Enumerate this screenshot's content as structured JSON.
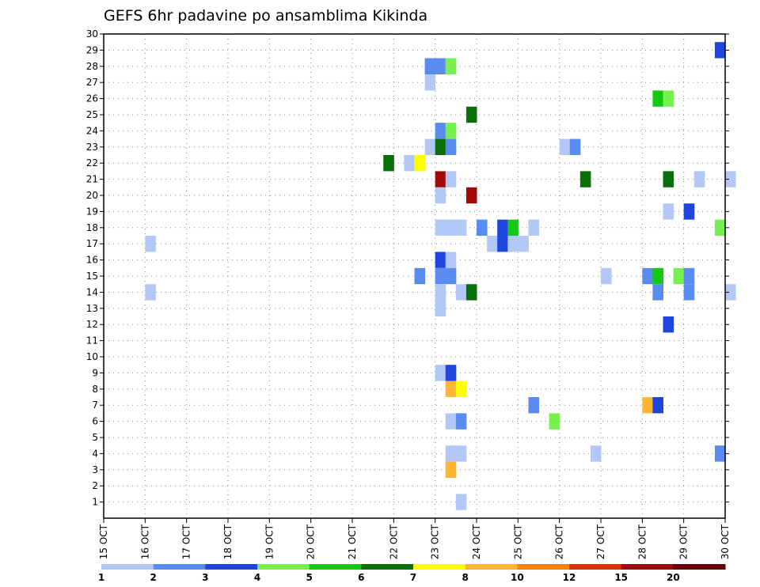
{
  "chart_data": {
    "type": "heatmap",
    "title": "GEFS 6hr padavine po ansamblima Kikinda",
    "x_ticks": [
      "15 OCT",
      "16 OCT",
      "17 OCT",
      "18 OCT",
      "19 OCT",
      "20 OCT",
      "21 OCT",
      "22 OCT",
      "23 OCT",
      "24 OCT",
      "25 OCT",
      "26 OCT",
      "27 OCT",
      "28 OCT",
      "29 OCT",
      "30 OCT"
    ],
    "y_range": [
      0,
      30
    ],
    "y_ticks": [
      1,
      2,
      3,
      4,
      5,
      6,
      7,
      8,
      9,
      10,
      11,
      12,
      13,
      14,
      15,
      16,
      17,
      18,
      19,
      20,
      21,
      22,
      23,
      24,
      25,
      26,
      27,
      28,
      29,
      30
    ],
    "grid": true,
    "colorbar": {
      "levels": [
        "1",
        "2",
        "3",
        "4",
        "5",
        "6",
        "7",
        "8",
        "10",
        "12",
        "15",
        "20"
      ],
      "colors": [
        "#b4c8f8",
        "#5a8cf0",
        "#1e46dc",
        "#78f050",
        "#14c814",
        "#0a6e0a",
        "#ffff00",
        "#ffb432",
        "#ff8200",
        "#dc320a",
        "#a00a0a",
        "#640000"
      ]
    },
    "cells": [
      {
        "day": "22.75",
        "member": 28,
        "class": 2
      },
      {
        "day": "23.0",
        "member": 28,
        "class": 2
      },
      {
        "day": "23.25",
        "member": 28,
        "class": 1
      },
      {
        "day": "23.25",
        "member": 28,
        "class": 4
      },
      {
        "day": "22.75",
        "member": 27,
        "class": 1
      },
      {
        "day": "28.25",
        "member": 26,
        "class": 5
      },
      {
        "day": "28.5",
        "member": 26,
        "class": 4
      },
      {
        "day": "29.75",
        "member": 29,
        "class": 3
      },
      {
        "day": "23.75",
        "member": 25,
        "class": 6
      },
      {
        "day": "23.0",
        "member": 24,
        "class": 2
      },
      {
        "day": "23.25",
        "member": 24,
        "class": 4
      },
      {
        "day": "22.75",
        "member": 23,
        "class": 1
      },
      {
        "day": "23.0",
        "member": 23,
        "class": 1
      },
      {
        "day": "23.0",
        "member": 23,
        "class": 6
      },
      {
        "day": "23.25",
        "member": 23,
        "class": 2
      },
      {
        "day": "26.0",
        "member": 23,
        "class": 1
      },
      {
        "day": "26.25",
        "member": 23,
        "class": 2
      },
      {
        "day": "21.75",
        "member": 22,
        "class": 6
      },
      {
        "day": "22.25",
        "member": 22,
        "class": 1
      },
      {
        "day": "22.5",
        "member": 22,
        "class": 7
      },
      {
        "day": "23.0",
        "member": 21,
        "class": 11
      },
      {
        "day": "23.25",
        "member": 21,
        "class": 1
      },
      {
        "day": "26.5",
        "member": 21,
        "class": 6
      },
      {
        "day": "28.5",
        "member": 21,
        "class": 6
      },
      {
        "day": "29.25",
        "member": 21,
        "class": 1
      },
      {
        "day": "30.0",
        "member": 21,
        "class": 1
      },
      {
        "day": "23.0",
        "member": 20,
        "class": 1
      },
      {
        "day": "23.75",
        "member": 20,
        "class": 11
      },
      {
        "day": "28.5",
        "member": 19,
        "class": 1
      },
      {
        "day": "29.0",
        "member": 19,
        "class": 3
      },
      {
        "day": "23.0",
        "member": 18,
        "class": 1
      },
      {
        "day": "23.25",
        "member": 18,
        "class": 1
      },
      {
        "day": "23.5",
        "member": 18,
        "class": 1
      },
      {
        "day": "24.0",
        "member": 18,
        "class": 2
      },
      {
        "day": "24.5",
        "member": 18,
        "class": 3
      },
      {
        "day": "24.75",
        "member": 18,
        "class": 5
      },
      {
        "day": "25.25",
        "member": 18,
        "class": 1
      },
      {
        "day": "29.75",
        "member": 18,
        "class": 4
      },
      {
        "day": "16.0",
        "member": 17,
        "class": 1
      },
      {
        "day": "24.25",
        "member": 17,
        "class": 1
      },
      {
        "day": "24.5",
        "member": 17,
        "class": 3
      },
      {
        "day": "24.75",
        "member": 17,
        "class": 1
      },
      {
        "day": "25.0",
        "member": 17,
        "class": 1
      },
      {
        "day": "23.0",
        "member": 16,
        "class": 3
      },
      {
        "day": "23.25",
        "member": 16,
        "class": 1
      },
      {
        "day": "22.5",
        "member": 15,
        "class": 2
      },
      {
        "day": "23.0",
        "member": 15,
        "class": 2
      },
      {
        "day": "23.25",
        "member": 15,
        "class": 2
      },
      {
        "day": "27.0",
        "member": 15,
        "class": 1
      },
      {
        "day": "28.0",
        "member": 15,
        "class": 2
      },
      {
        "day": "28.25",
        "member": 15,
        "class": 5
      },
      {
        "day": "28.75",
        "member": 15,
        "class": 4
      },
      {
        "day": "29.0",
        "member": 15,
        "class": 2
      },
      {
        "day": "16.0",
        "member": 14,
        "class": 1
      },
      {
        "day": "23.0",
        "member": 14,
        "class": 1
      },
      {
        "day": "23.5",
        "member": 14,
        "class": 1
      },
      {
        "day": "23.75",
        "member": 14,
        "class": 6
      },
      {
        "day": "28.25",
        "member": 14,
        "class": 2
      },
      {
        "day": "29.0",
        "member": 14,
        "class": 2
      },
      {
        "day": "30.0",
        "member": 14,
        "class": 1
      },
      {
        "day": "23.0",
        "member": 13,
        "class": 1
      },
      {
        "day": "28.5",
        "member": 12,
        "class": 3
      },
      {
        "day": "23.0",
        "member": 9,
        "class": 1
      },
      {
        "day": "23.25",
        "member": 9,
        "class": 3
      },
      {
        "day": "23.25",
        "member": 8,
        "class": 8
      },
      {
        "day": "23.5",
        "member": 8,
        "class": 7
      },
      {
        "day": "25.25",
        "member": 7,
        "class": 2
      },
      {
        "day": "28.0",
        "member": 7,
        "class": 8
      },
      {
        "day": "28.25",
        "member": 7,
        "class": 3
      },
      {
        "day": "23.25",
        "member": 6,
        "class": 1
      },
      {
        "day": "23.5",
        "member": 6,
        "class": 2
      },
      {
        "day": "25.75",
        "member": 6,
        "class": 4
      },
      {
        "day": "23.25",
        "member": 4,
        "class": 1
      },
      {
        "day": "23.5",
        "member": 4,
        "class": 1
      },
      {
        "day": "26.75",
        "member": 4,
        "class": 1
      },
      {
        "day": "29.75",
        "member": 4,
        "class": 2
      },
      {
        "day": "23.25",
        "member": 3,
        "class": 8
      },
      {
        "day": "23.5",
        "member": 1,
        "class": 1
      }
    ]
  }
}
